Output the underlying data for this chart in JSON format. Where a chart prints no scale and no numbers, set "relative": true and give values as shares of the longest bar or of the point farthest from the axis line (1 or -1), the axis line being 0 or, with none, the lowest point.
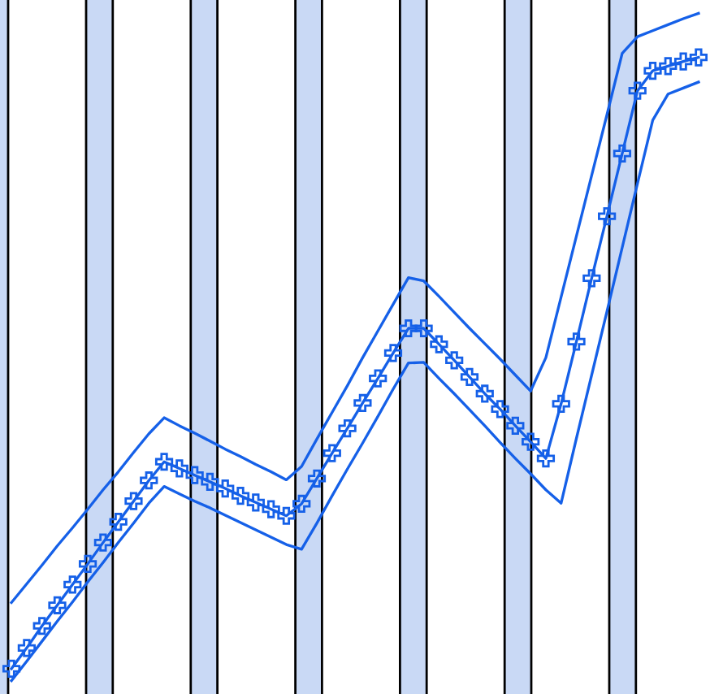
{
  "chart_data": {
    "type": "line",
    "relative": true,
    "categories": [
      null,
      null,
      null,
      null,
      null,
      null,
      null,
      null,
      null,
      null,
      null,
      null,
      null,
      null,
      null,
      null,
      null,
      null,
      null,
      null,
      null,
      null,
      null,
      null,
      null,
      null,
      null,
      null,
      null,
      null,
      null,
      null,
      null,
      null,
      null,
      null,
      null,
      null,
      null,
      null,
      null,
      null,
      null,
      null,
      null,
      null
    ],
    "series": [
      {
        "color": "#1560e8",
        "marker": "cross",
        "values": [
          0.018,
          0.049,
          0.082,
          0.113,
          0.144,
          0.175,
          0.207,
          0.238,
          0.269,
          0.3,
          0.328,
          0.318,
          0.308,
          0.298,
          0.288,
          0.277,
          0.267,
          0.257,
          0.247,
          0.265,
          0.303,
          0.341,
          0.378,
          0.416,
          0.453,
          0.491,
          0.528,
          0.528,
          0.504,
          0.48,
          0.455,
          0.43,
          0.407,
          0.382,
          0.358,
          0.333,
          0.415,
          0.508,
          0.603,
          0.696,
          0.79,
          0.884,
          0.914,
          0.921,
          0.928,
          0.934
        ]
      },
      {
        "color": "#1560e8",
        "marker": "none",
        "values": [
          0.117,
          0.145,
          0.173,
          0.202,
          0.229,
          0.257,
          0.286,
          0.313,
          0.342,
          0.37,
          0.394,
          0.382,
          0.371,
          0.359,
          0.347,
          0.336,
          0.324,
          0.313,
          0.301,
          0.321,
          0.362,
          0.402,
          0.442,
          0.484,
          0.524,
          0.564,
          0.604,
          0.599,
          0.576,
          0.552,
          0.528,
          0.505,
          0.482,
          0.458,
          0.434,
          0.484,
          0.575,
          0.666,
          0.757,
          0.848,
          0.94,
          0.965,
          0.974,
          0.983,
          0.992,
          1.0
        ]
      },
      {
        "color": "#1560e8",
        "marker": "none",
        "values": [
          0,
          0.029,
          0.059,
          0.089,
          0.118,
          0.148,
          0.177,
          0.207,
          0.236,
          0.266,
          0.291,
          0.28,
          0.269,
          0.259,
          0.248,
          0.237,
          0.226,
          0.215,
          0.204,
          0.197,
          0.236,
          0.277,
          0.317,
          0.356,
          0.396,
          0.437,
          0.476,
          0.477,
          0.453,
          0.43,
          0.406,
          0.382,
          0.357,
          0.333,
          0.31,
          0.286,
          0.266,
          0.363,
          0.458,
          0.553,
          0.649,
          0.745,
          0.84,
          0.879,
          0.888,
          0.897
        ]
      }
    ]
  }
}
